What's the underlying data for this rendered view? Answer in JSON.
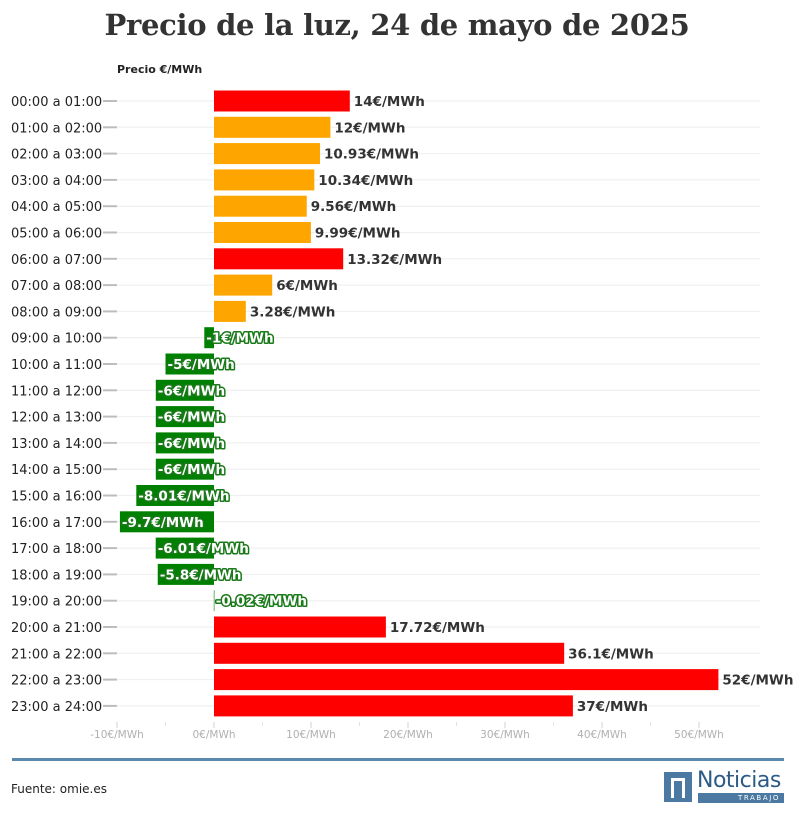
{
  "chart_data": {
    "type": "bar",
    "orientation": "horizontal",
    "title": "Precio de la luz, 24 de mayo de 2025",
    "ylabel": "Precio €/MWh",
    "xlabel": "",
    "xlim": [
      -10,
      55
    ],
    "x_ticks": [
      -10,
      0,
      10,
      20,
      30,
      40,
      50
    ],
    "x_tick_labels": [
      "-10€/MWh",
      "0€/MWh",
      "10€/MWh",
      "20€/MWh",
      "30€/MWh",
      "40€/MWh",
      "50€/MWh"
    ],
    "grid": true,
    "categories": [
      "00:00 a 01:00",
      "01:00 a 02:00",
      "02:00 a 03:00",
      "03:00 a 04:00",
      "04:00 a 05:00",
      "05:00 a 06:00",
      "06:00 a 07:00",
      "07:00 a 08:00",
      "08:00 a 09:00",
      "09:00 a 10:00",
      "10:00 a 11:00",
      "11:00 a 12:00",
      "12:00 a 13:00",
      "13:00 a 14:00",
      "14:00 a 15:00",
      "15:00 a 16:00",
      "16:00 a 17:00",
      "17:00 a 18:00",
      "18:00 a 19:00",
      "19:00 a 20:00",
      "20:00 a 21:00",
      "21:00 a 22:00",
      "22:00 a 23:00",
      "23:00 a 24:00"
    ],
    "values": [
      14,
      12,
      10.93,
      10.34,
      9.56,
      9.99,
      13.32,
      6,
      3.28,
      -1,
      -5,
      -6,
      -6,
      -6,
      -6,
      -8.01,
      -9.7,
      -6.01,
      -5.8,
      -0.02,
      17.72,
      36.1,
      52,
      37
    ],
    "value_labels": [
      "14€/MWh",
      "12€/MWh",
      "10.93€/MWh",
      "10.34€/MWh",
      "9.56€/MWh",
      "9.99€/MWh",
      "13.32€/MWh",
      "6€/MWh",
      "3.28€/MWh",
      "-1€/MWh",
      "-5€/MWh",
      "-6€/MWh",
      "-6€/MWh",
      "-6€/MWh",
      "-6€/MWh",
      "-8.01€/MWh",
      "-9.7€/MWh",
      "-6.01€/MWh",
      "-5.8€/MWh",
      "-0.02€/MWh",
      "17.72€/MWh",
      "36.1€/MWh",
      "52€/MWh",
      "37€/MWh"
    ],
    "bar_colors": [
      "#ff0000",
      "#ffa500",
      "#ffa500",
      "#ffa500",
      "#ffa500",
      "#ffa500",
      "#ff0000",
      "#ffa500",
      "#ffa500",
      "#008000",
      "#008000",
      "#008000",
      "#008000",
      "#008000",
      "#008000",
      "#008000",
      "#008000",
      "#008000",
      "#008000",
      "#008000",
      "#ff0000",
      "#ff0000",
      "#ff0000",
      "#ff0000"
    ]
  },
  "footer": {
    "source": "Fuente: omie.es",
    "logo_name": "Noticias",
    "logo_sub": "TRABAJO"
  },
  "colors": {
    "divider": "#5b89ad",
    "brand": "#4b79a1"
  }
}
